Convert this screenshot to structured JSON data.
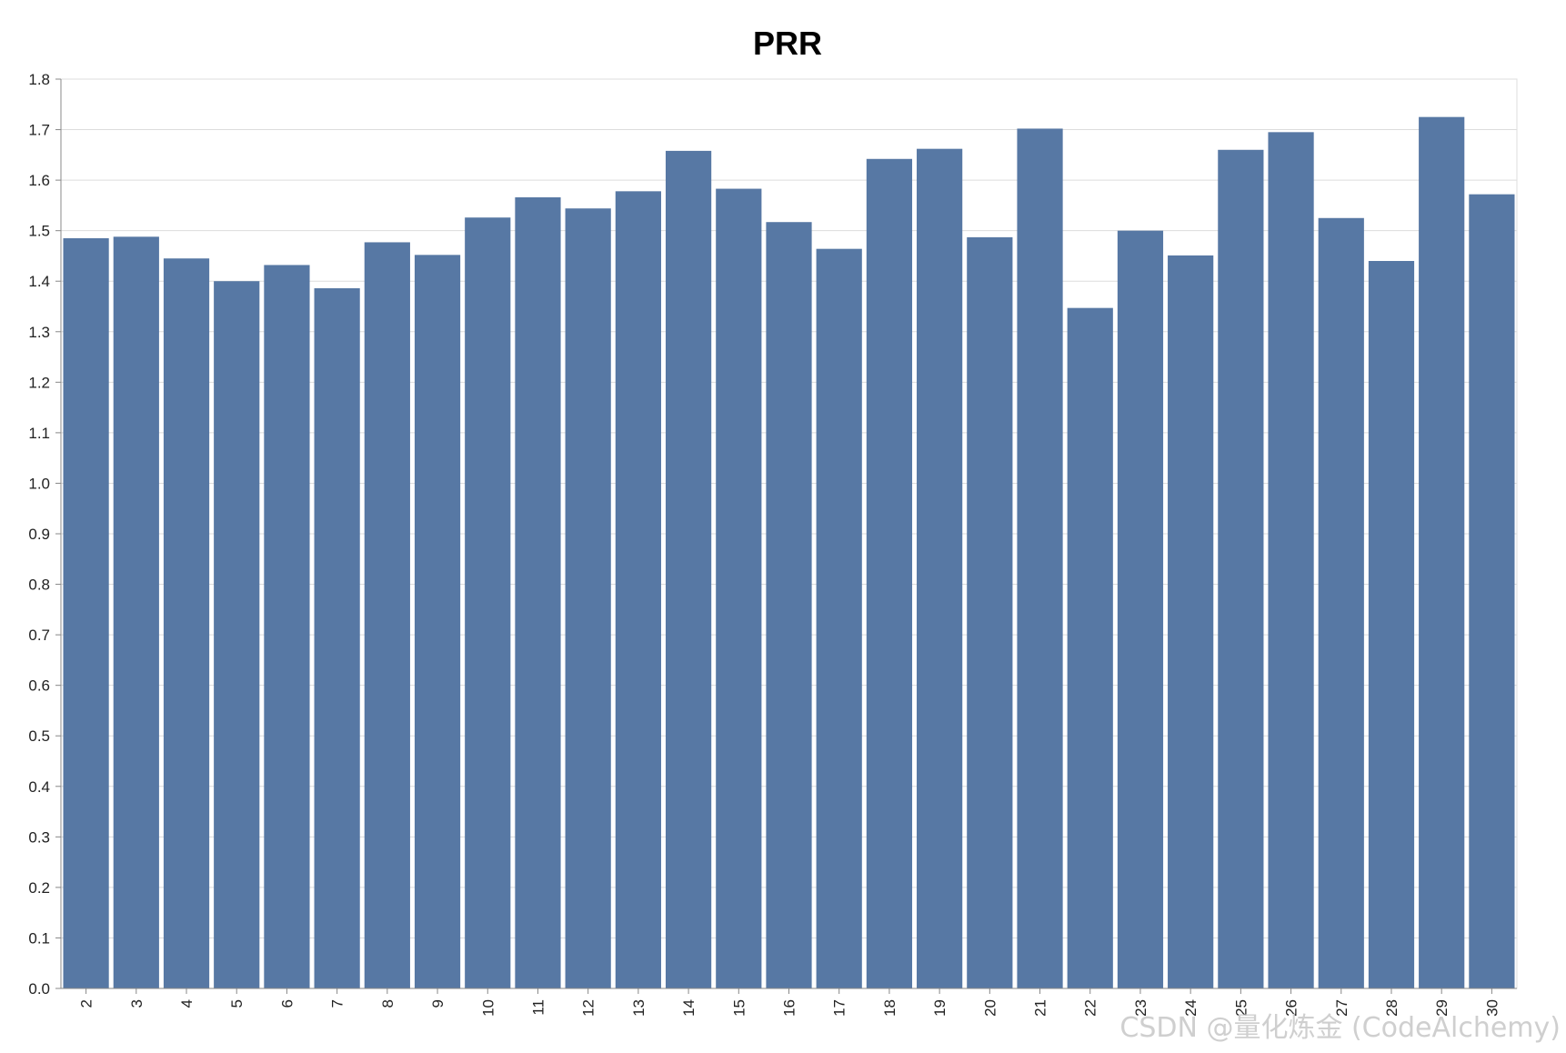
{
  "chart_data": {
    "type": "bar",
    "title": "PRR",
    "xlabel": "",
    "ylabel": "",
    "categories": [
      "2",
      "3",
      "4",
      "5",
      "6",
      "7",
      "8",
      "9",
      "10",
      "11",
      "12",
      "13",
      "14",
      "15",
      "16",
      "17",
      "18",
      "19",
      "20",
      "21",
      "22",
      "23",
      "24",
      "25",
      "26",
      "27",
      "28",
      "29",
      "30"
    ],
    "values": [
      1.485,
      1.488,
      1.445,
      1.4,
      1.432,
      1.386,
      1.477,
      1.452,
      1.526,
      1.566,
      1.544,
      1.578,
      1.658,
      1.583,
      1.517,
      1.464,
      1.642,
      1.662,
      1.487,
      1.702,
      1.347,
      1.5,
      1.451,
      1.66,
      1.695,
      1.525,
      1.44,
      1.725,
      1.572
    ],
    "ylim": [
      0,
      1.8
    ],
    "yticks": [
      "0.0",
      "0.1",
      "0.2",
      "0.3",
      "0.4",
      "0.5",
      "0.6",
      "0.7",
      "0.8",
      "0.9",
      "1.0",
      "1.1",
      "1.2",
      "1.3",
      "1.4",
      "1.5",
      "1.6",
      "1.7",
      "1.8"
    ],
    "grid": true,
    "bar_color": "#5778a4",
    "grid_color": "#dddddd",
    "axis_color": "#888888"
  },
  "watermark": "CSDN @量化炼金 (CodeAlchemy)"
}
